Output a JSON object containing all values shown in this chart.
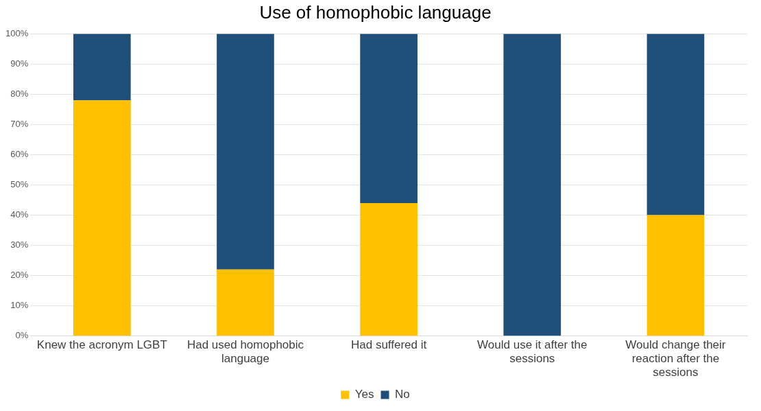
{
  "chart_data": {
    "type": "bar",
    "title": "Use of homophobic language",
    "stacked": true,
    "categories": [
      "Knew the acronym LGBT",
      "Had used homophobic language",
      "Had suffered it",
      "Would use it after the sessions",
      "Would change their reaction after the sessions"
    ],
    "series": [
      {
        "name": "Yes",
        "color": "#ffc000",
        "values": [
          78,
          22,
          44,
          0,
          40
        ]
      },
      {
        "name": "No",
        "color": "#1f4e79",
        "values": [
          22,
          78,
          56,
          100,
          60
        ]
      }
    ],
    "ylim": [
      0,
      100
    ],
    "yticks": [
      {
        "value": 0,
        "label": "0%"
      },
      {
        "value": 10,
        "label": "10%"
      },
      {
        "value": 20,
        "label": "20%"
      },
      {
        "value": 30,
        "label": "30%"
      },
      {
        "value": 40,
        "label": "40%"
      },
      {
        "value": 50,
        "label": "50%"
      },
      {
        "value": 60,
        "label": "60%"
      },
      {
        "value": 70,
        "label": "70%"
      },
      {
        "value": 80,
        "label": "80%"
      },
      {
        "value": 90,
        "label": "90%"
      },
      {
        "value": 100,
        "label": "100%"
      }
    ],
    "grid": "y",
    "legend": "bottom"
  }
}
